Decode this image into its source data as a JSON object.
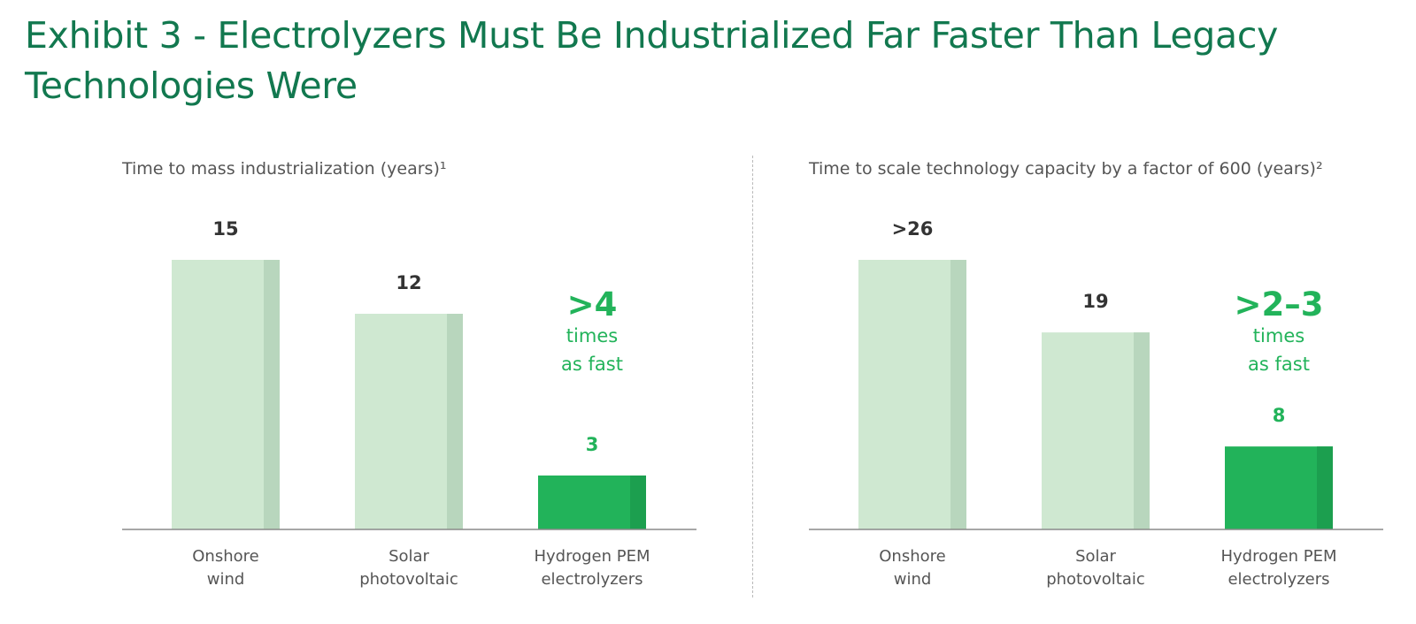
{
  "title": "Exhibit 3 - Electrolyzers Must Be Industrialized Far Faster Than Legacy Technologies Were",
  "colors": {
    "title": "#12784f",
    "bar_light": "#cfe8d1",
    "bar_light_shade": "#b8d6bd",
    "bar_highlight": "#22b35a",
    "bar_highlight_shade": "#1c9f4f",
    "callout": "#22b35a",
    "axis": "#8a8a8a"
  },
  "chart_data": [
    {
      "type": "bar",
      "title": "Time to mass industrialization (years)¹",
      "categories": [
        [
          "Onshore",
          "wind"
        ],
        [
          "Solar",
          "photovoltaic"
        ],
        [
          "Hydrogen PEM",
          "electrolyzers"
        ]
      ],
      "values": [
        15,
        12,
        3
      ],
      "value_labels": [
        "15",
        "12",
        "3"
      ],
      "highlight_index": 2,
      "ylim": [
        0,
        15
      ],
      "grid": false,
      "callout": {
        "big": ">4",
        "lines": [
          "times",
          "as fast"
        ]
      }
    },
    {
      "type": "bar",
      "title": "Time to scale technology capacity by a factor of 600 (years)²",
      "categories": [
        [
          "Onshore",
          "wind"
        ],
        [
          "Solar",
          "photovoltaic"
        ],
        [
          "Hydrogen PEM",
          "electrolyzers"
        ]
      ],
      "values": [
        26,
        19,
        8
      ],
      "value_labels": [
        ">26",
        "19",
        "8"
      ],
      "highlight_index": 2,
      "ylim": [
        0,
        26
      ],
      "grid": false,
      "callout": {
        "big": ">2–3",
        "lines": [
          "times",
          "as fast"
        ]
      }
    }
  ]
}
